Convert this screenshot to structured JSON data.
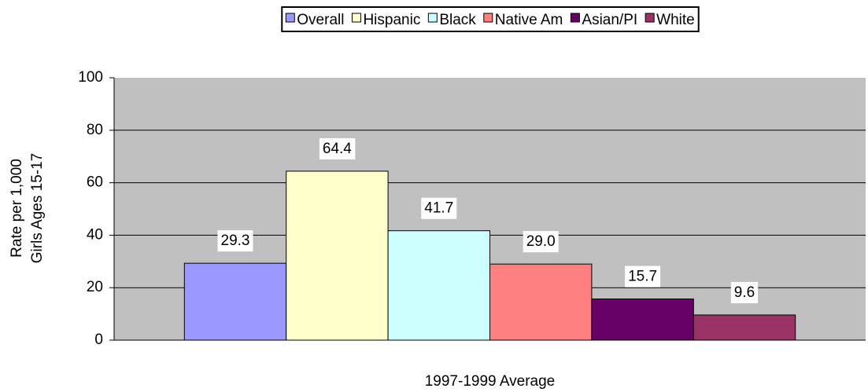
{
  "chart_data": {
    "type": "bar",
    "categories": [
      "1997-1999 Average"
    ],
    "y_label": [
      "Rate per 1,000",
      "Girls Ages 15-17"
    ],
    "series": [
      {
        "name": "Overall",
        "color": "#9999ff",
        "values": [
          29.3
        ]
      },
      {
        "name": "Hispanic",
        "color": "#ffffcc",
        "values": [
          64.4
        ]
      },
      {
        "name": "Black",
        "color": "#ccffff",
        "values": [
          41.7
        ]
      },
      {
        "name": "Native Am",
        "color": "#ff8080",
        "values": [
          29
        ],
        "value_labels": [
          "29.0"
        ]
      },
      {
        "name": "Asian/PI",
        "color": "#660066",
        "values": [
          15.7
        ]
      },
      {
        "name": "White",
        "color": "#993366",
        "values": [
          9.6
        ]
      }
    ],
    "ylim": [
      0,
      100
    ],
    "yticks": [
      0,
      20,
      40,
      60,
      80,
      100
    ],
    "grid": true,
    "legend": "top",
    "plot_background": "#c0c0c0"
  }
}
